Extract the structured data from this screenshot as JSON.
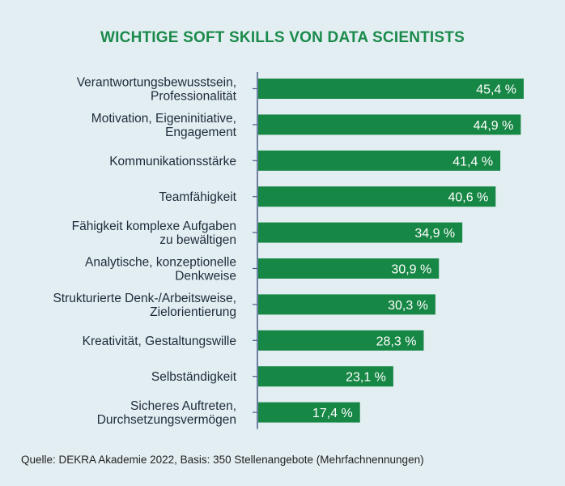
{
  "chart_data": {
    "type": "bar",
    "orientation": "horizontal",
    "title": "WICHTIGE SOFT SKILLS VON DATA SCIENTISTS",
    "categories": [
      [
        "Verantwortungsbewusstsein,",
        "Professionalität"
      ],
      [
        "Motivation, Eigeninitiative,",
        "Engagement"
      ],
      [
        "Kommunikationsstärke"
      ],
      [
        "Teamfähigkeit"
      ],
      [
        "Fähigkeit komplexe Aufgaben",
        "zu bewältigen"
      ],
      [
        "Analytische, konzeptionelle",
        "Denkweise"
      ],
      [
        "Strukturierte Denk-/Arbeitsweise,",
        "Zielorientierung"
      ],
      [
        "Kreativität, Gestaltungswille"
      ],
      [
        "Selbständigkeit"
      ],
      [
        "Sicheres Auftreten,",
        "Durchsetzungsvermögen"
      ]
    ],
    "values": [
      45.4,
      44.9,
      41.4,
      40.6,
      34.9,
      30.9,
      30.3,
      28.3,
      23.1,
      17.4
    ],
    "value_labels": [
      "45,4 %",
      "44,9 %",
      "41,4 %",
      "40,6 %",
      "34,9 %",
      "30,9 %",
      "30,3 %",
      "28,3 %",
      "23,1 %",
      "17,4 %"
    ],
    "xlim": [
      0,
      45.4
    ],
    "grid": false,
    "bar_color": "#178745",
    "axis_color": "#4a5a8a",
    "source": "Quelle: DEKRA Akademie 2022, Basis: 350 Stellenangebote (Mehrfachnennungen)"
  }
}
